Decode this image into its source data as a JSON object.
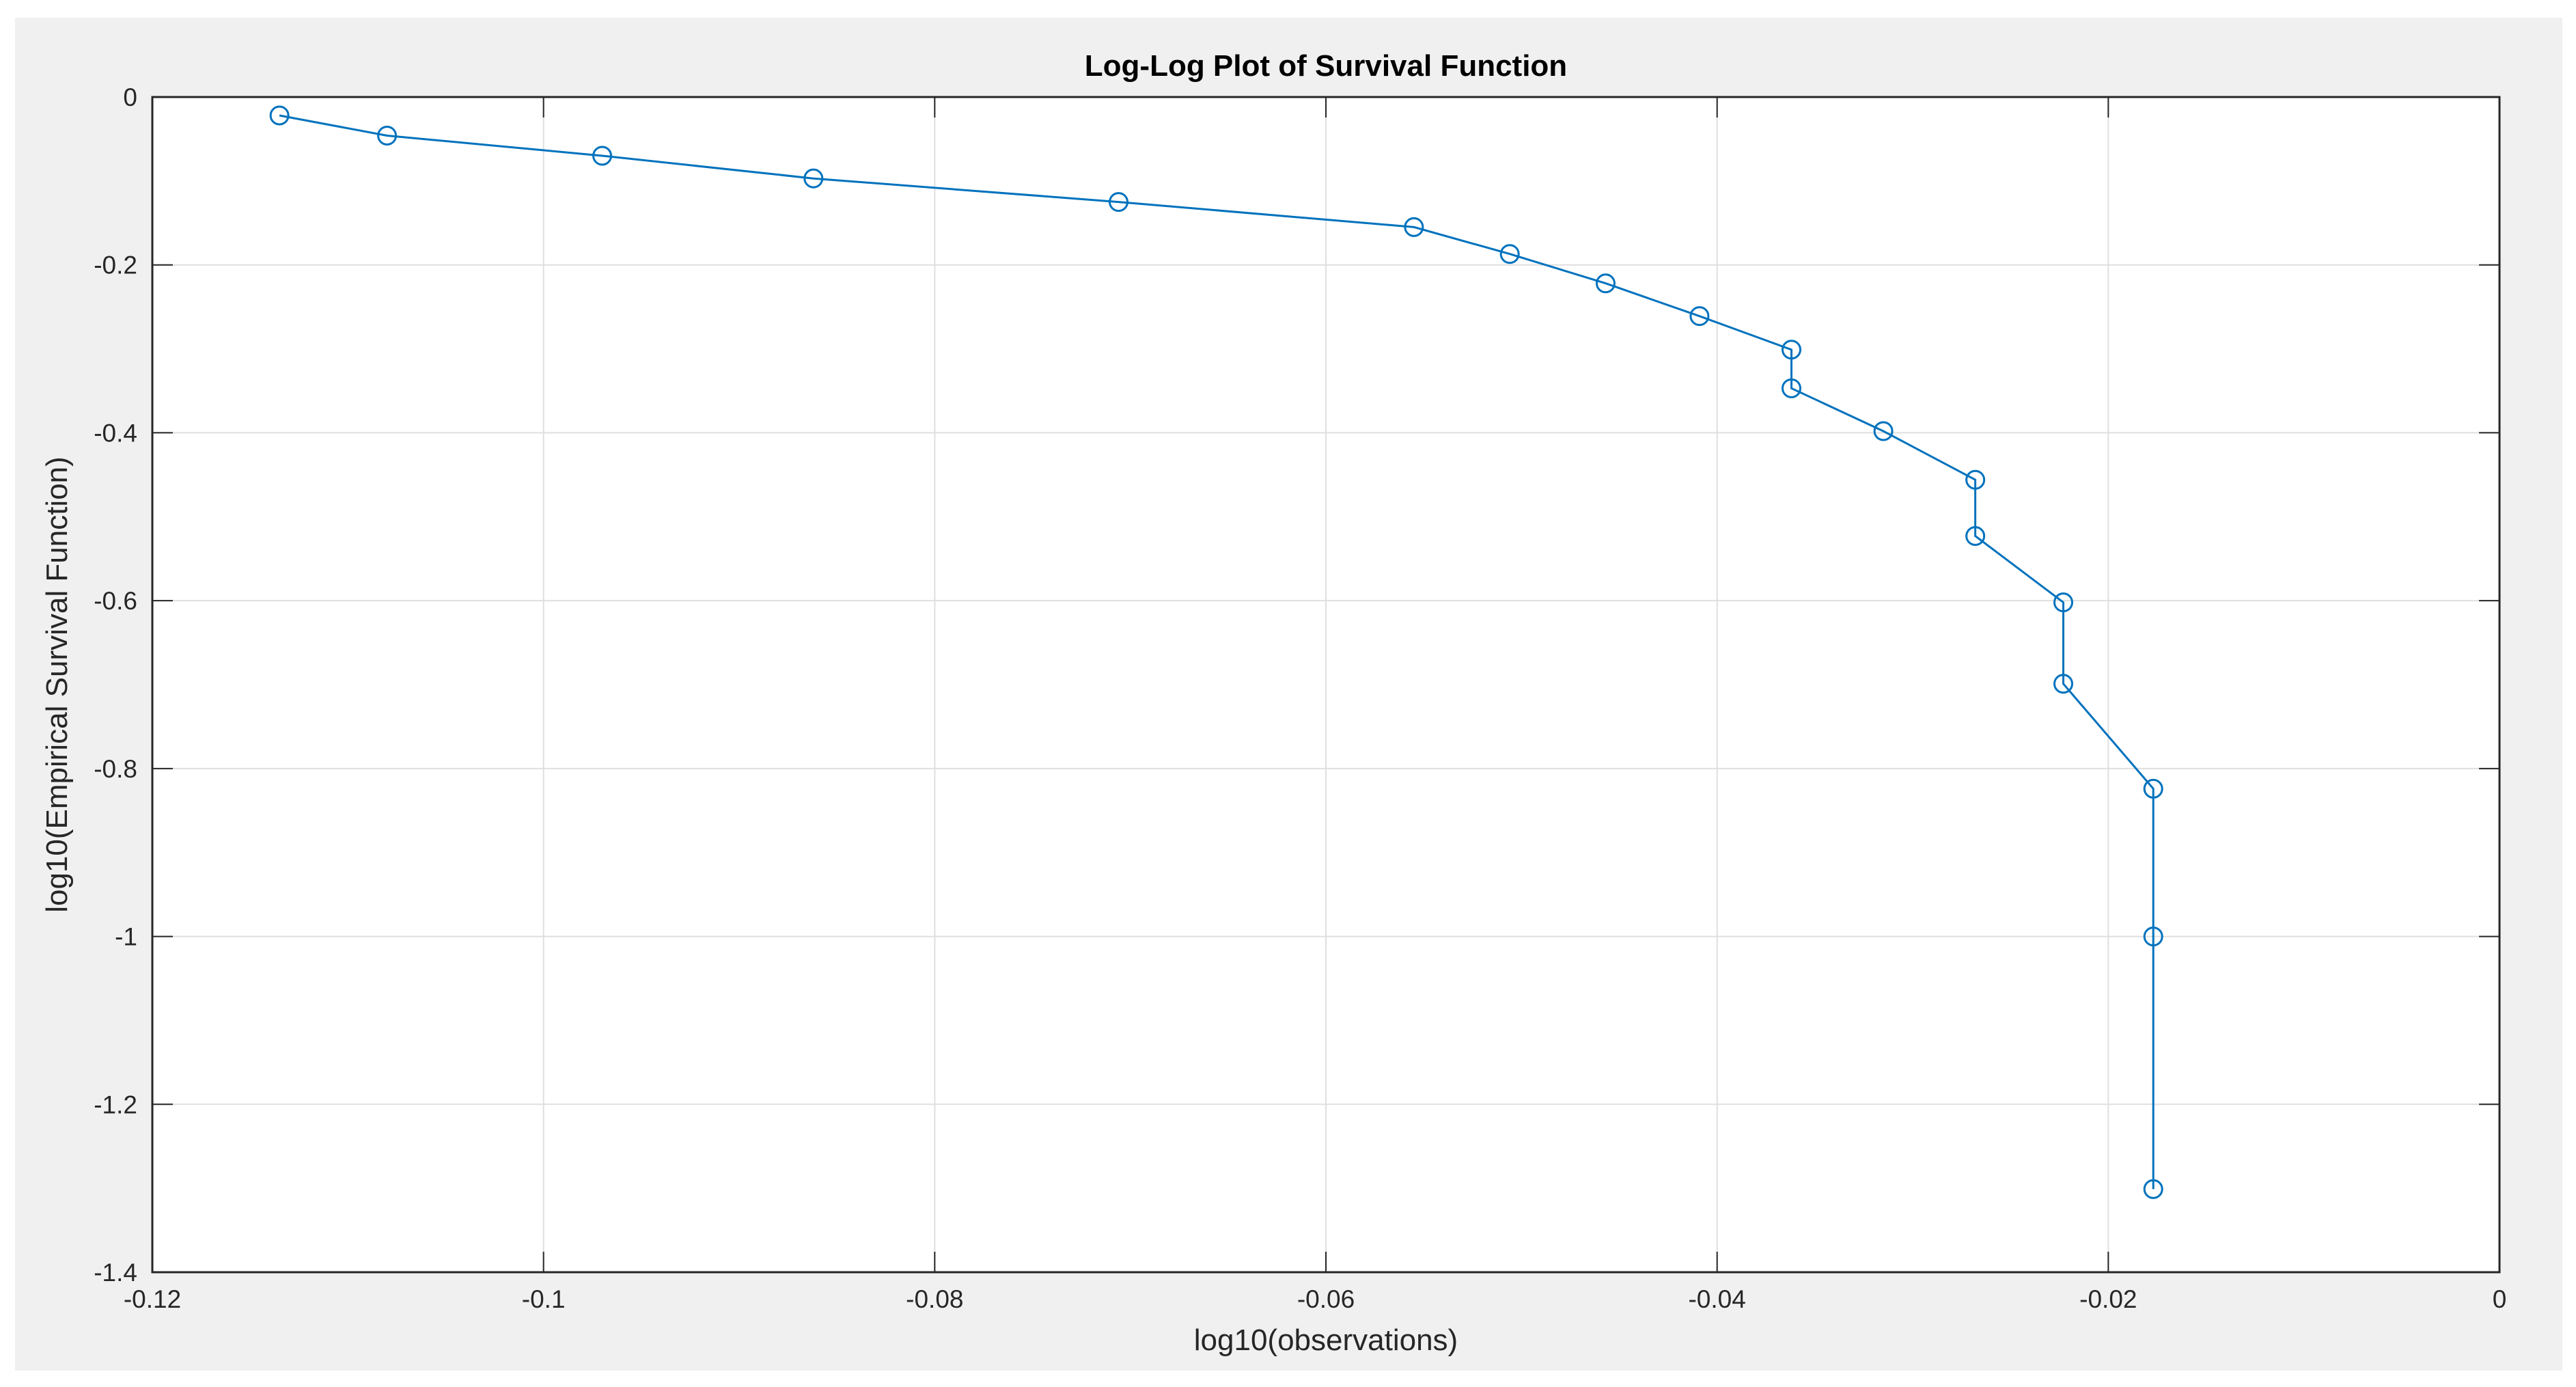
{
  "figure": {
    "background": "#f0f0f0",
    "axes_background": "#ffffff"
  },
  "chart_data": {
    "type": "line",
    "title": "Log-Log Plot of Survival Function",
    "xlabel": "log10(observations)",
    "ylabel": "log10(Empirical Survival Function)",
    "xlim": [
      -0.12,
      0
    ],
    "ylim": [
      -1.4,
      0
    ],
    "x_ticks": [
      -0.12,
      -0.1,
      -0.08,
      -0.06,
      -0.04,
      -0.02,
      0
    ],
    "x_tick_labels": [
      "-0.12",
      "-0.1",
      "-0.08",
      "-0.06",
      "-0.04",
      "-0.02",
      "0"
    ],
    "y_ticks": [
      0,
      -0.2,
      -0.4,
      -0.6,
      -0.8,
      -1,
      -1.2,
      -1.4
    ],
    "y_tick_labels": [
      "0",
      "-0.2",
      "-0.4",
      "-0.6",
      "-0.8",
      "-1",
      "-1.2",
      "-1.4"
    ],
    "grid": true,
    "marker": "circle",
    "series": [
      {
        "color": "#0072bd",
        "x": [
          -0.1135,
          -0.108,
          -0.097,
          -0.0862,
          -0.0706,
          -0.0555,
          -0.0506,
          -0.0457,
          -0.0409,
          -0.0362,
          -0.0362,
          -0.0315,
          -0.0268,
          -0.0268,
          -0.0223,
          -0.0223,
          -0.0177,
          -0.0177,
          -0.0177
        ],
        "y": [
          -0.022,
          -0.046,
          -0.07,
          -0.097,
          -0.125,
          -0.155,
          -0.187,
          -0.222,
          -0.261,
          -0.301,
          -0.347,
          -0.398,
          -0.456,
          -0.523,
          -0.602,
          -0.699,
          -0.824,
          -1.0,
          -1.301
        ]
      }
    ]
  }
}
